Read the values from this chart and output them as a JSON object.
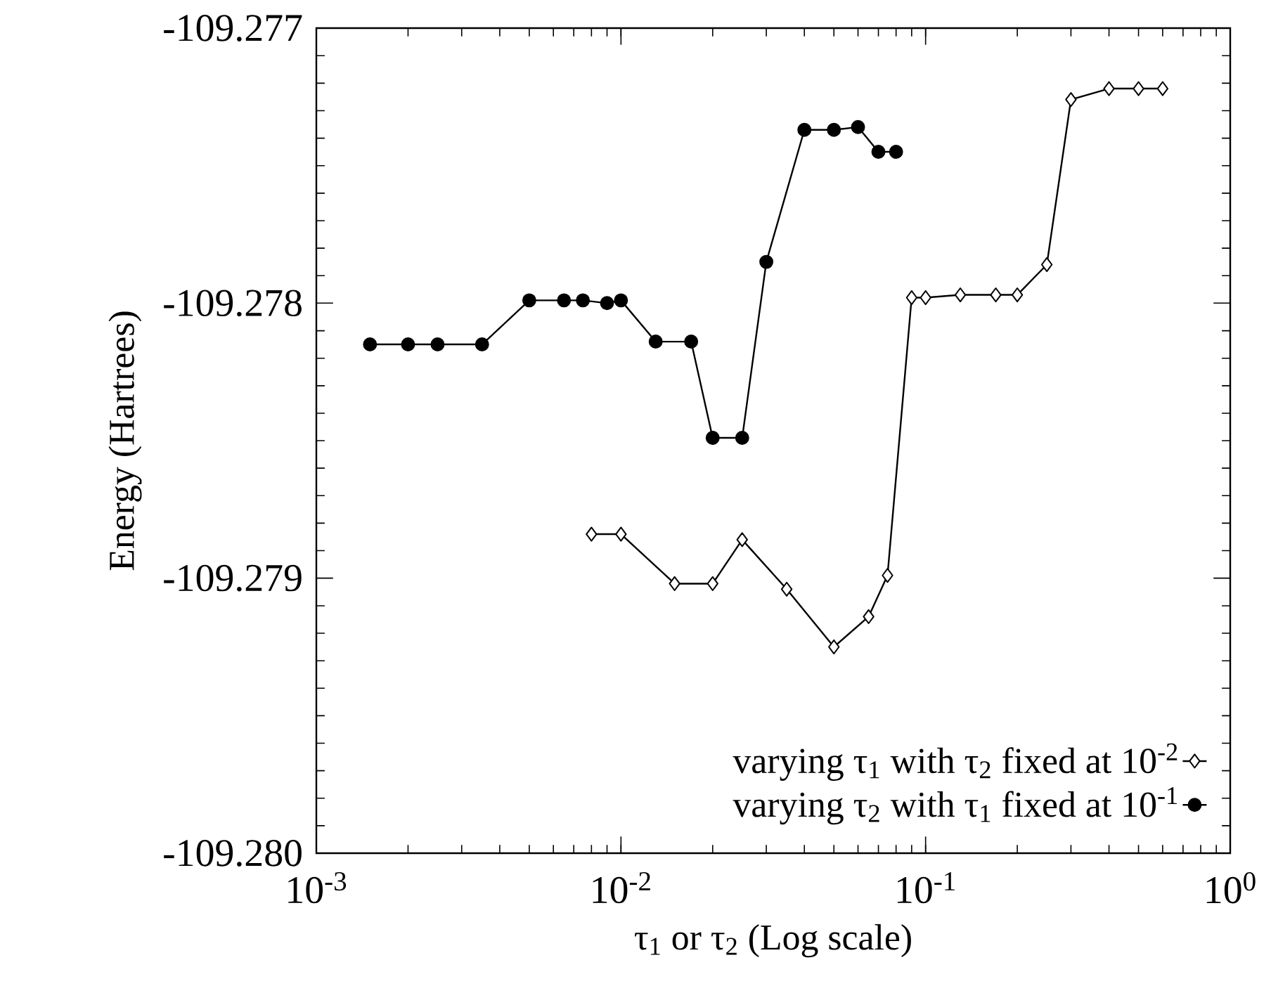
{
  "chart_data": {
    "type": "line",
    "xlabel": "τ$_{1}$ or τ$_{2}$ (Log scale)",
    "ylabel": "Energy (Hartrees)",
    "log": "x",
    "xlim": [
      0.001,
      1
    ],
    "ylim": [
      -109.28,
      -109.277
    ],
    "xticks": [
      {
        "value": 0.001,
        "label": "10$^{-3}$"
      },
      {
        "value": 0.01,
        "label": "10$^{-2}$"
      },
      {
        "value": 0.1,
        "label": "10$^{-1}$"
      },
      {
        "value": 1,
        "label": "10$^{0}$"
      }
    ],
    "yticks": [
      {
        "value": -109.28,
        "label": "-109.280"
      },
      -109.279,
      -109.278,
      -109.277
    ],
    "legend": "bottom right",
    "grid": false,
    "line_style": "solid",
    "series": [
      {
        "name": "varying τ$_{1}$ with τ$_{2}$ fixed at 10$^{-2}$",
        "color": "#000000",
        "marker": "diamond",
        "x": [
          0.008,
          0.01,
          0.015,
          0.02,
          0.025,
          0.035,
          0.05,
          0.065,
          0.075,
          0.09,
          0.1,
          0.13,
          0.17,
          0.2,
          0.25,
          0.3,
          0.4,
          0.5,
          0.6
        ],
        "values": [
          -109.27884,
          -109.27884,
          -109.27902,
          -109.27902,
          -109.27886,
          -109.27904,
          -109.27925,
          -109.27914,
          -109.27899,
          -109.27798,
          -109.27798,
          -109.27797,
          -109.27797,
          -109.27797,
          -109.27786,
          -109.27726,
          -109.27722,
          -109.27722,
          -109.27722
        ]
      },
      {
        "name": "varying τ$_{2}$ with τ$_{1}$ fixed at 10$^{-1}$",
        "color": "#000000",
        "marker": "circle",
        "x": [
          0.0015,
          0.002,
          0.0025,
          0.0035,
          0.005,
          0.0065,
          0.0075,
          0.009,
          0.01,
          0.013,
          0.017,
          0.02,
          0.025,
          0.03,
          0.04,
          0.05,
          0.06,
          0.07,
          0.08
        ],
        "values": [
          -109.27815,
          -109.27815,
          -109.27815,
          -109.27815,
          -109.27799,
          -109.27799,
          -109.27799,
          -109.278,
          -109.27799,
          -109.27814,
          -109.27814,
          -109.27849,
          -109.27849,
          -109.27785,
          -109.27737,
          -109.27737,
          -109.27736,
          -109.27745,
          -109.27745
        ]
      }
    ]
  }
}
